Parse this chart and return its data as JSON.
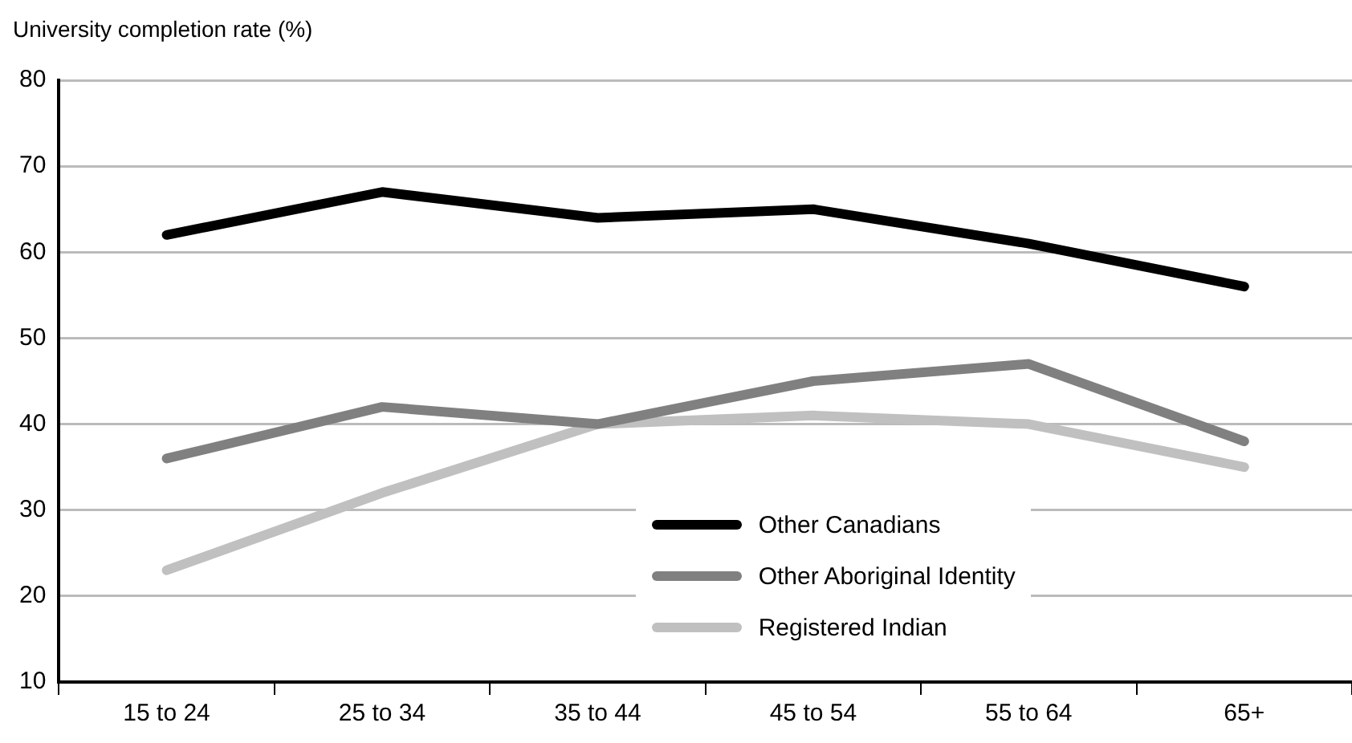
{
  "chart_data": {
    "type": "line",
    "ylabel": "University completion rate (%)",
    "categories": [
      "15 to 24",
      "25 to 34",
      "35 to 44",
      "45 to 54",
      "55 to 64",
      "65+"
    ],
    "series": [
      {
        "name": "Other Canadians",
        "color": "#000000",
        "values": [
          62,
          67,
          64,
          65,
          61,
          56
        ]
      },
      {
        "name": "Other Aboriginal Identity",
        "color": "#808080",
        "values": [
          36,
          42,
          40,
          45,
          47,
          38
        ]
      },
      {
        "name": "Registered Indian",
        "color": "#c0c0c0",
        "values": [
          23,
          32,
          40,
          41,
          40,
          35
        ]
      }
    ],
    "ylim": [
      10,
      80
    ],
    "yticks": [
      10,
      20,
      30,
      40,
      50,
      60,
      70,
      80
    ],
    "grid": "y",
    "legend": "bottom",
    "marker": "none",
    "line_style": "solid"
  }
}
